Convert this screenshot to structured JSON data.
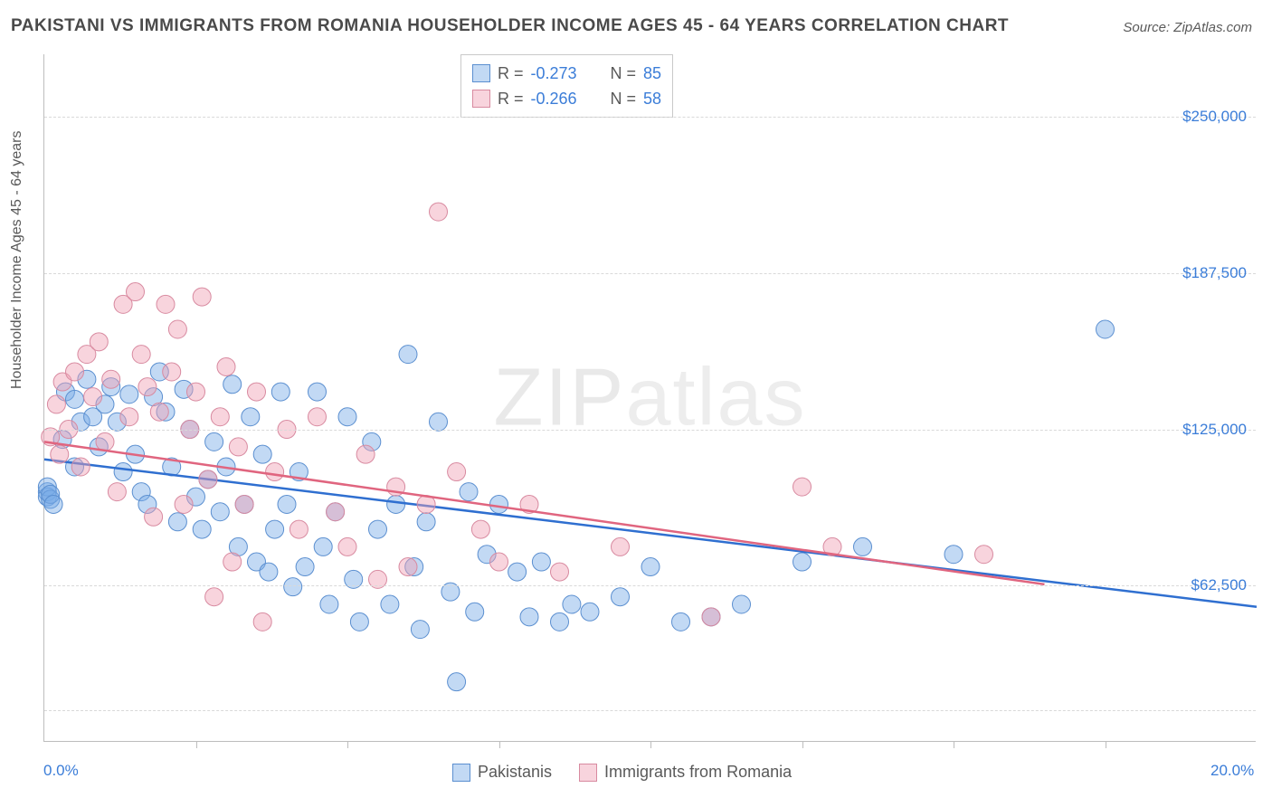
{
  "title": "PAKISTANI VS IMMIGRANTS FROM ROMANIA HOUSEHOLDER INCOME AGES 45 - 64 YEARS CORRELATION CHART",
  "source_label": "Source: ",
  "source_link": "ZipAtlas.com",
  "watermark_a": "ZIP",
  "watermark_b": "atlas",
  "y_axis_label": "Householder Income Ages 45 - 64 years",
  "chart": {
    "type": "scatter",
    "background_color": "#ffffff",
    "grid_color": "#d9d9d9",
    "axis_color": "#bdbdbd",
    "tick_label_color": "#3b7dd8",
    "axis_label_color": "#595959",
    "xlim": [
      0,
      20
    ],
    "ylim": [
      0,
      275000
    ],
    "x_tick_labels": {
      "0": "0.0%",
      "20": "20.0%"
    },
    "x_minor_ticks": [
      2.5,
      5.0,
      7.5,
      10.0,
      12.5,
      15.0,
      17.5
    ],
    "y_tick_labels": {
      "62500": "$62,500",
      "125000": "$125,000",
      "187500": "$187,500",
      "250000": "$250,000"
    },
    "y_grid_positions": [
      12500,
      62500,
      125000,
      187500,
      250000
    ],
    "marker_radius": 10,
    "marker_opacity": 0.45,
    "line_width": 2.5,
    "series": [
      {
        "key": "pakistanis",
        "label": "Pakistanis",
        "color_fill": "rgba(120,170,230,0.45)",
        "color_stroke": "#5b8fd0",
        "line_color": "#2f6fd0",
        "R": "-0.273",
        "N": "85",
        "trend": {
          "x1": 0.0,
          "y1": 113000,
          "x2": 20.0,
          "y2": 54000
        },
        "points": [
          [
            0.05,
            100000
          ],
          [
            0.05,
            98000
          ],
          [
            0.05,
            102000
          ],
          [
            0.1,
            97000
          ],
          [
            0.1,
            99000
          ],
          [
            0.15,
            95000
          ],
          [
            0.3,
            121000
          ],
          [
            0.35,
            140000
          ],
          [
            0.5,
            137000
          ],
          [
            0.5,
            110000
          ],
          [
            0.6,
            128000
          ],
          [
            0.7,
            145000
          ],
          [
            0.8,
            130000
          ],
          [
            0.9,
            118000
          ],
          [
            1.0,
            135000
          ],
          [
            1.1,
            142000
          ],
          [
            1.2,
            128000
          ],
          [
            1.3,
            108000
          ],
          [
            1.4,
            139000
          ],
          [
            1.5,
            115000
          ],
          [
            1.6,
            100000
          ],
          [
            1.7,
            95000
          ],
          [
            1.8,
            138000
          ],
          [
            1.9,
            148000
          ],
          [
            2.0,
            132000
          ],
          [
            2.1,
            110000
          ],
          [
            2.2,
            88000
          ],
          [
            2.3,
            141000
          ],
          [
            2.4,
            125000
          ],
          [
            2.5,
            98000
          ],
          [
            2.6,
            85000
          ],
          [
            2.7,
            105000
          ],
          [
            2.8,
            120000
          ],
          [
            2.9,
            92000
          ],
          [
            3.0,
            110000
          ],
          [
            3.1,
            143000
          ],
          [
            3.2,
            78000
          ],
          [
            3.3,
            95000
          ],
          [
            3.4,
            130000
          ],
          [
            3.5,
            72000
          ],
          [
            3.6,
            115000
          ],
          [
            3.7,
            68000
          ],
          [
            3.8,
            85000
          ],
          [
            3.9,
            140000
          ],
          [
            4.0,
            95000
          ],
          [
            4.1,
            62000
          ],
          [
            4.2,
            108000
          ],
          [
            4.3,
            70000
          ],
          [
            4.5,
            140000
          ],
          [
            4.6,
            78000
          ],
          [
            4.7,
            55000
          ],
          [
            4.8,
            92000
          ],
          [
            5.0,
            130000
          ],
          [
            5.1,
            65000
          ],
          [
            5.2,
            48000
          ],
          [
            5.4,
            120000
          ],
          [
            5.5,
            85000
          ],
          [
            5.7,
            55000
          ],
          [
            5.8,
            95000
          ],
          [
            6.0,
            155000
          ],
          [
            6.1,
            70000
          ],
          [
            6.2,
            45000
          ],
          [
            6.3,
            88000
          ],
          [
            6.5,
            128000
          ],
          [
            6.7,
            60000
          ],
          [
            6.8,
            24000
          ],
          [
            7.0,
            100000
          ],
          [
            7.1,
            52000
          ],
          [
            7.3,
            75000
          ],
          [
            7.5,
            95000
          ],
          [
            7.8,
            68000
          ],
          [
            8.0,
            50000
          ],
          [
            8.2,
            72000
          ],
          [
            8.5,
            48000
          ],
          [
            8.7,
            55000
          ],
          [
            9.0,
            52000
          ],
          [
            9.5,
            58000
          ],
          [
            10.0,
            70000
          ],
          [
            10.5,
            48000
          ],
          [
            11.0,
            50000
          ],
          [
            11.5,
            55000
          ],
          [
            12.5,
            72000
          ],
          [
            13.5,
            78000
          ],
          [
            15.0,
            75000
          ],
          [
            17.5,
            165000
          ]
        ]
      },
      {
        "key": "romania",
        "label": "Immigrants from Romania",
        "color_fill": "rgba(240,160,180,0.45)",
        "color_stroke": "#d88aa0",
        "line_color": "#e0657f",
        "R": "-0.266",
        "N": "58",
        "trend": {
          "x1": 0.0,
          "y1": 120000,
          "x2": 16.5,
          "y2": 63000
        },
        "points": [
          [
            0.1,
            122000
          ],
          [
            0.2,
            135000
          ],
          [
            0.25,
            115000
          ],
          [
            0.3,
            144000
          ],
          [
            0.4,
            125000
          ],
          [
            0.5,
            148000
          ],
          [
            0.6,
            110000
          ],
          [
            0.7,
            155000
          ],
          [
            0.8,
            138000
          ],
          [
            0.9,
            160000
          ],
          [
            1.0,
            120000
          ],
          [
            1.1,
            145000
          ],
          [
            1.2,
            100000
          ],
          [
            1.3,
            175000
          ],
          [
            1.4,
            130000
          ],
          [
            1.5,
            180000
          ],
          [
            1.6,
            155000
          ],
          [
            1.7,
            142000
          ],
          [
            1.8,
            90000
          ],
          [
            1.9,
            132000
          ],
          [
            2.0,
            175000
          ],
          [
            2.1,
            148000
          ],
          [
            2.2,
            165000
          ],
          [
            2.3,
            95000
          ],
          [
            2.4,
            125000
          ],
          [
            2.5,
            140000
          ],
          [
            2.6,
            178000
          ],
          [
            2.7,
            105000
          ],
          [
            2.8,
            58000
          ],
          [
            2.9,
            130000
          ],
          [
            3.0,
            150000
          ],
          [
            3.1,
            72000
          ],
          [
            3.2,
            118000
          ],
          [
            3.3,
            95000
          ],
          [
            3.5,
            140000
          ],
          [
            3.6,
            48000
          ],
          [
            3.8,
            108000
          ],
          [
            4.0,
            125000
          ],
          [
            4.2,
            85000
          ],
          [
            4.5,
            130000
          ],
          [
            4.8,
            92000
          ],
          [
            5.0,
            78000
          ],
          [
            5.3,
            115000
          ],
          [
            5.5,
            65000
          ],
          [
            5.8,
            102000
          ],
          [
            6.0,
            70000
          ],
          [
            6.3,
            95000
          ],
          [
            6.5,
            212000
          ],
          [
            6.8,
            108000
          ],
          [
            7.2,
            85000
          ],
          [
            7.5,
            72000
          ],
          [
            8.0,
            95000
          ],
          [
            8.5,
            68000
          ],
          [
            9.5,
            78000
          ],
          [
            11.0,
            50000
          ],
          [
            12.5,
            102000
          ],
          [
            13.0,
            78000
          ],
          [
            15.5,
            75000
          ]
        ]
      }
    ]
  },
  "legend_stats_label_R": "R =",
  "legend_stats_label_N": "N ="
}
